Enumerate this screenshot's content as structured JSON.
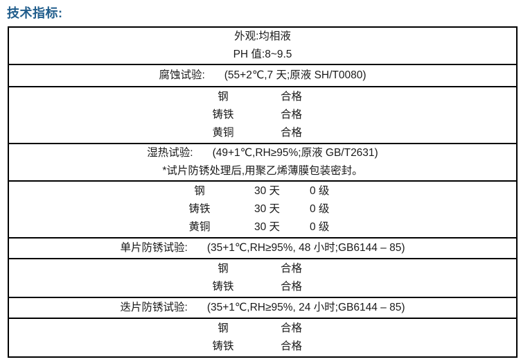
{
  "title": "技术指标:",
  "colors": {
    "title_accent": "#1F5C8B",
    "table_border": "#000000",
    "text": "#1a1a1a",
    "background": "#ffffff"
  },
  "table": {
    "appearance": {
      "line1": "外观:均相液",
      "line2": "PH 值:8~9.5"
    },
    "corrosion_header": {
      "label": "腐蚀试验:",
      "conditions": "(55+2℃,7 天;原液 SH/T0080)"
    },
    "corrosion_results": {
      "items": [
        {
          "name": "钢",
          "result": "合格"
        },
        {
          "name": "铸铁",
          "result": "合格"
        },
        {
          "name": "黄铜",
          "result": "合格"
        }
      ]
    },
    "damp_heat_header": {
      "label": "湿热试验:",
      "conditions": "(49+1℃,RH≥95%;原液 GB/T2631)",
      "note": "*试片防锈处理后,用聚乙烯薄膜包装密封。"
    },
    "damp_heat_results": {
      "items": [
        {
          "name": "钢",
          "duration": "30 天",
          "result": "0 级"
        },
        {
          "name": "铸铁",
          "duration": "30 天",
          "result": "0 级"
        },
        {
          "name": "黄铜",
          "duration": "30 天",
          "result": "0 级"
        }
      ]
    },
    "single_strip_header": {
      "label": "单片防锈试验:",
      "conditions": "(35+1℃,RH≥95%, 48 小时;GB6144 – 85)"
    },
    "single_strip_results": {
      "items": [
        {
          "name": "钢",
          "result": "合格"
        },
        {
          "name": "铸铁",
          "result": "合格"
        }
      ]
    },
    "stacked_strip_header": {
      "label": "迭片防锈试验:",
      "conditions": "(35+1℃,RH≥95%, 24 小时;GB6144 – 85)"
    },
    "stacked_strip_results": {
      "items": [
        {
          "name": "钢",
          "result": "合格"
        },
        {
          "name": "铸铁",
          "result": "合格"
        }
      ]
    }
  }
}
